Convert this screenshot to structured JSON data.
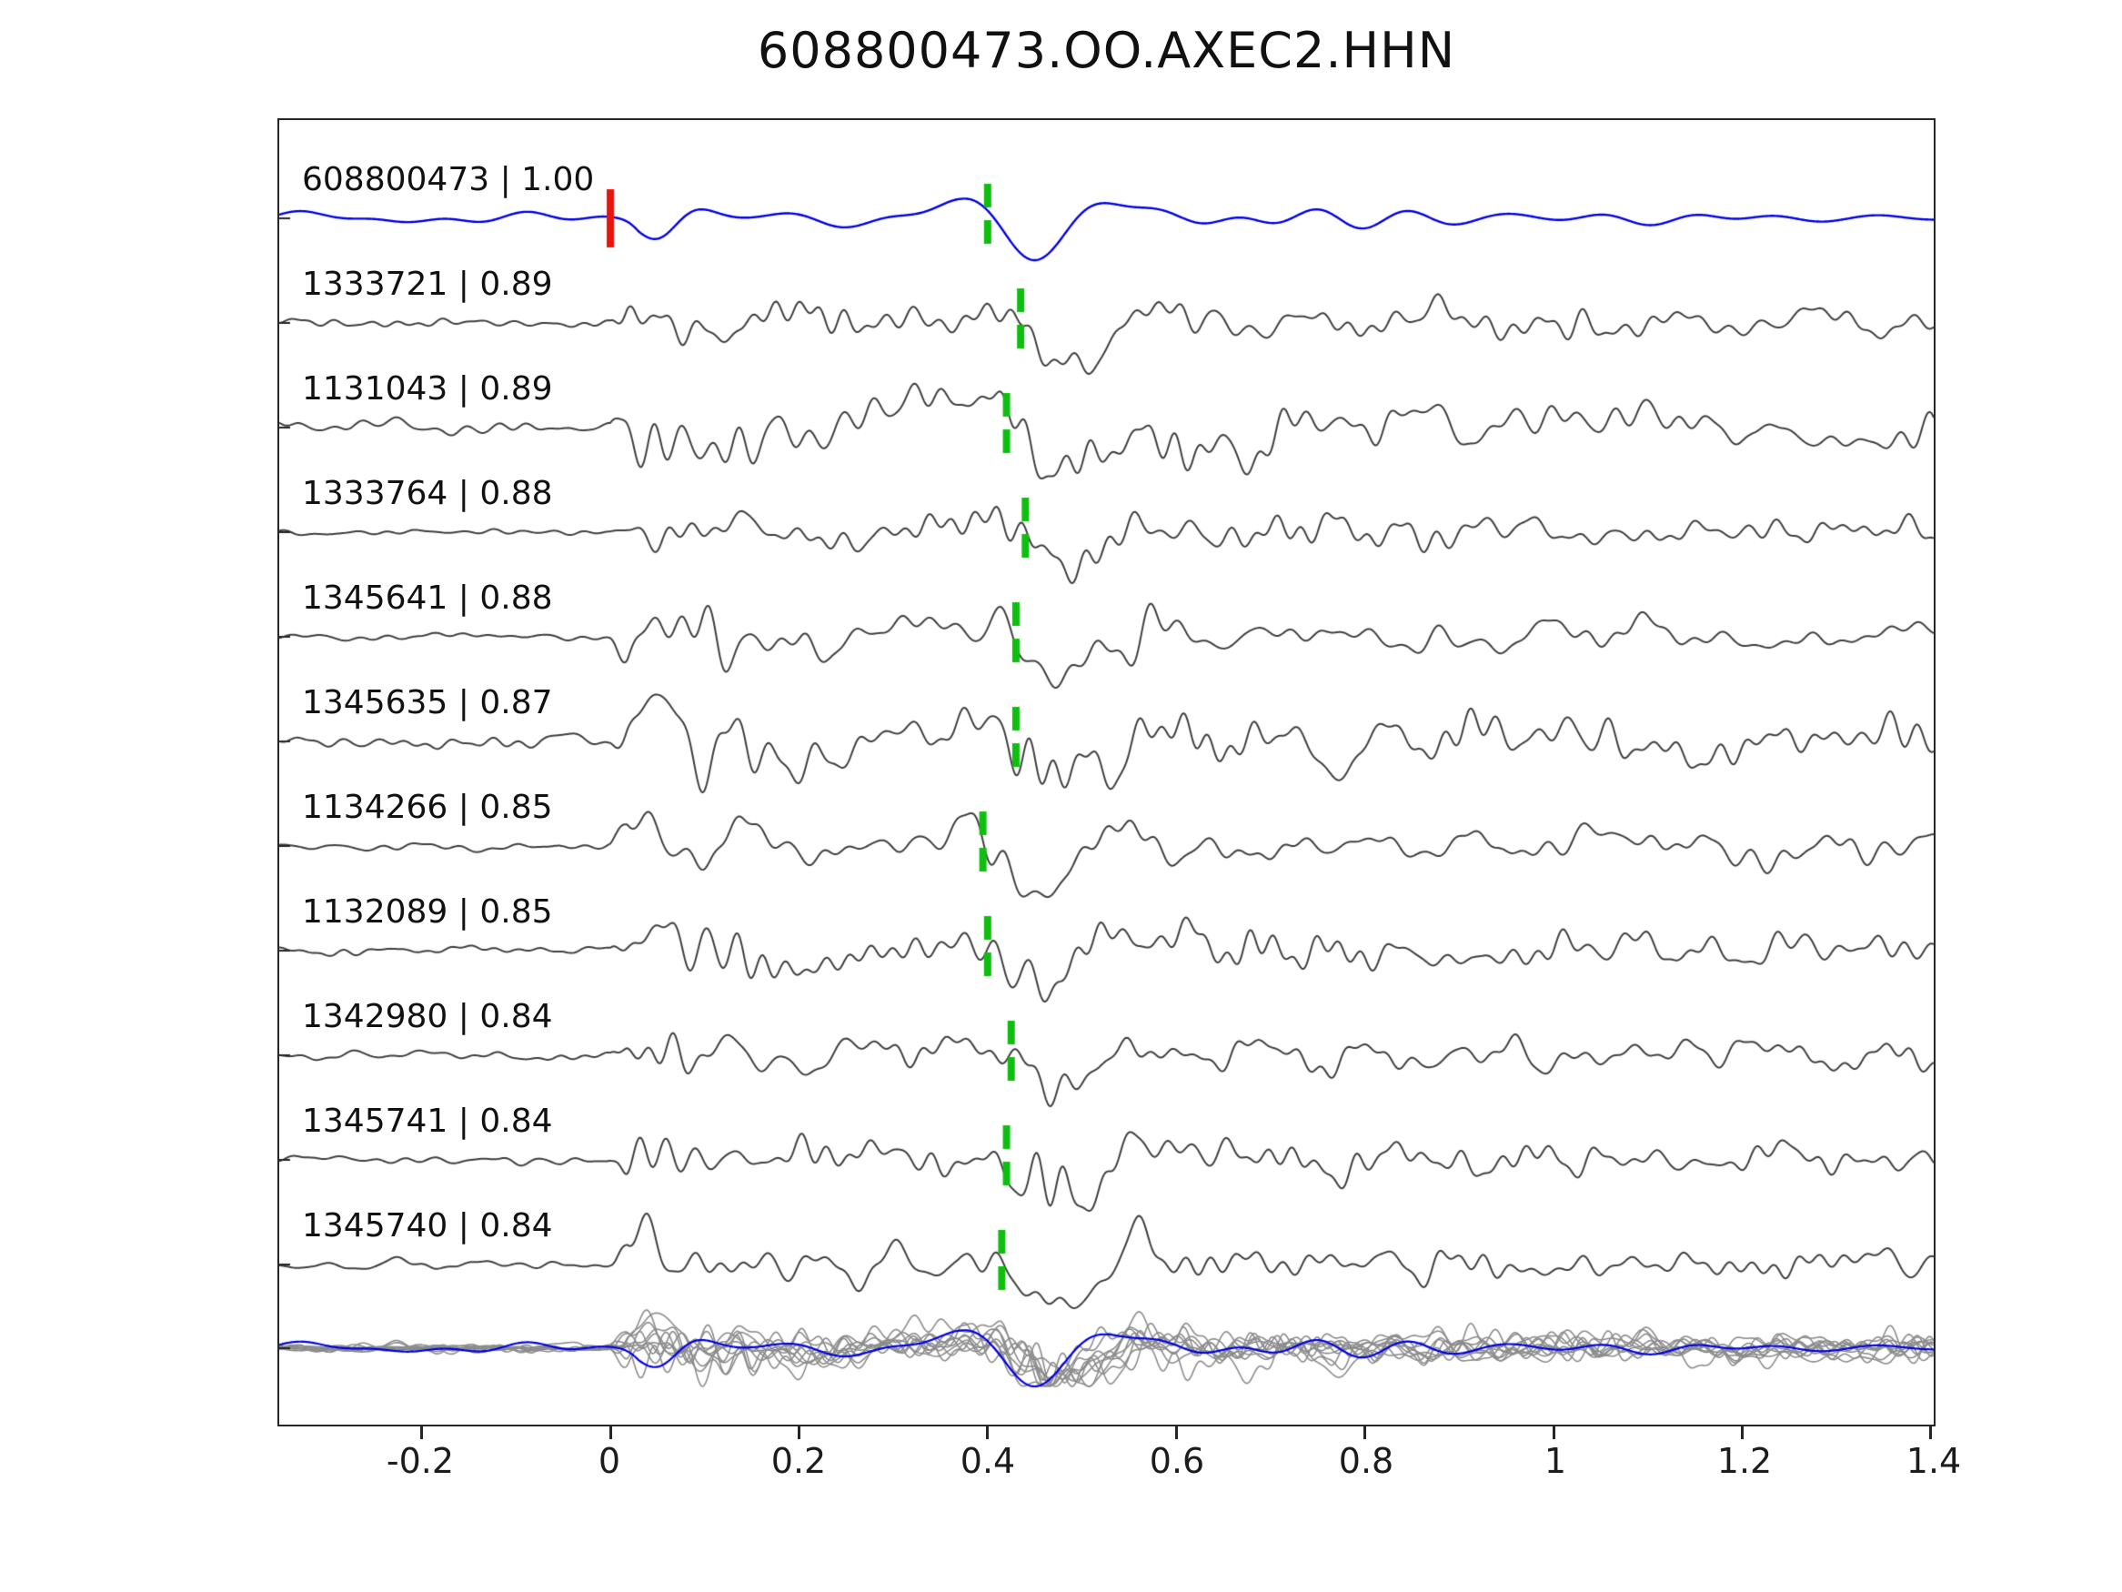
{
  "title": "608800473.OO.AXEC2.HHN",
  "colors": {
    "reference_trace": "#0000e6",
    "match_trace": "#3f3f3f",
    "overlay_trace": "#8c8c8c",
    "pick_mark": "#0fbf0f",
    "onset_mark": "#e8150f",
    "axis": "#262626",
    "text": "#111111",
    "background": "#ffffff"
  },
  "chart_data": {
    "type": "line",
    "title": "608800473.OO.AXEC2.HHN",
    "xlabel": "",
    "ylabel": "",
    "grid": false,
    "legend": "none",
    "x_range": [
      -0.351,
      1.403
    ],
    "x_ticks": [
      -0.2,
      0,
      0.2,
      0.4,
      0.6,
      0.8,
      1,
      1.2,
      1.4
    ],
    "x_tick_labels": [
      "-0.2",
      "0",
      "0.2",
      "0.4",
      "0.6",
      "0.8",
      "1",
      "1.2",
      "1.4"
    ],
    "description": "Waveform similarity plot: reference event trace (blue) on top, ten matched event traces (gray) below with green pick-time marks, red onset mark at t=0 on the reference, and all traces superimposed in the bottom overlay row.",
    "traces": [
      {
        "id": "608800473",
        "correlation": 1.0,
        "label": "608800473 | 1.00",
        "role": "reference",
        "pick_time": 0.4,
        "onset_mark_time": 0.0
      },
      {
        "id": "1333721",
        "correlation": 0.89,
        "label": "1333721 | 0.89",
        "role": "match",
        "pick_time": 0.435
      },
      {
        "id": "1131043",
        "correlation": 0.89,
        "label": "1131043 | 0.89",
        "role": "match",
        "pick_time": 0.42
      },
      {
        "id": "1333764",
        "correlation": 0.88,
        "label": "1333764 | 0.88",
        "role": "match",
        "pick_time": 0.44
      },
      {
        "id": "1345641",
        "correlation": 0.88,
        "label": "1345641 | 0.88",
        "role": "match",
        "pick_time": 0.43
      },
      {
        "id": "1345635",
        "correlation": 0.87,
        "label": "1345635 | 0.87",
        "role": "match",
        "pick_time": 0.43
      },
      {
        "id": "1134266",
        "correlation": 0.85,
        "label": "1134266 | 0.85",
        "role": "match",
        "pick_time": 0.395
      },
      {
        "id": "1132089",
        "correlation": 0.85,
        "label": "1132089 | 0.85",
        "role": "match",
        "pick_time": 0.4
      },
      {
        "id": "1342980",
        "correlation": 0.84,
        "label": "1342980 | 0.84",
        "role": "match",
        "pick_time": 0.425
      },
      {
        "id": "1345741",
        "correlation": 0.84,
        "label": "1345741 | 0.84",
        "role": "match",
        "pick_time": 0.42
      },
      {
        "id": "1345740",
        "correlation": 0.84,
        "label": "1345740 | 0.84",
        "role": "match",
        "pick_time": 0.415
      }
    ],
    "overlay_row": {
      "content": "all traces superimposed, reference in blue"
    }
  }
}
